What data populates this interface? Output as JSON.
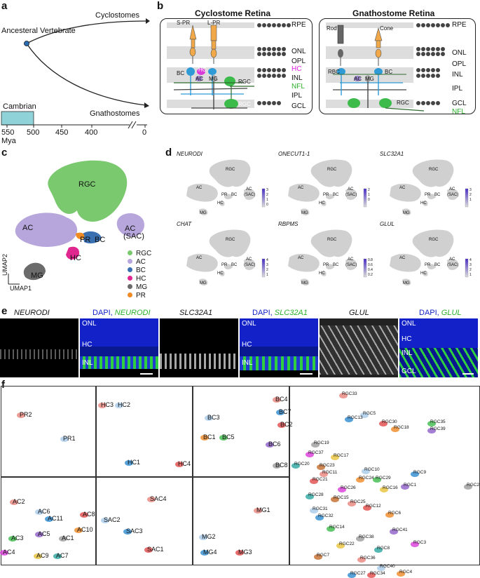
{
  "panel_labels": {
    "a": "a",
    "b": "b",
    "c": "c",
    "d": "d",
    "e": "e",
    "f": "f"
  },
  "panel_a": {
    "root_label": "Ancesteral Vertebrate",
    "branch_top": "Cyclostomes",
    "branch_bottom": "Gnathostomes",
    "period": "Cambrian",
    "ticks": [
      "550",
      "500",
      "450",
      "400",
      "0"
    ],
    "axis_unit": "Mya",
    "period_color": "#8fd3d8"
  },
  "panel_b": {
    "left_title": "Cyclostome Retina",
    "right_title": "Gnathostome Retina",
    "left_layers": [
      "RPE",
      "ONL",
      "OPL",
      "HC",
      "INL",
      "NFL",
      "IPL",
      "GCL"
    ],
    "right_layers": [
      "RPE",
      "ONL",
      "OPL",
      "INL",
      "IPL",
      "GCL",
      "NFL"
    ],
    "left_cells": {
      "spr": "S-PR",
      "lpr": "L-PR",
      "bc": "BC",
      "hc": "HC",
      "ac": "AC",
      "mg": "MG",
      "rgc1": "RGC",
      "rgc2": "RGC"
    },
    "right_cells": {
      "rod": "Rod",
      "cone": "Cone",
      "rbc": "RBC",
      "ac": "AC",
      "mg": "MG",
      "bc": "BC",
      "rgc": "RGC"
    },
    "hc_color": "#e020e0",
    "nfl_color": "#2bb02b"
  },
  "panel_c": {
    "clusters": {
      "rgc": "RGC",
      "ac": "AC",
      "ac_sac_1": "AC",
      "ac_sac_2": "(SAC)",
      "pr": "PR",
      "bc": "BC",
      "hc": "HC",
      "mg": "MG"
    },
    "legend": [
      {
        "label": "RGC",
        "color": "#7bc96f"
      },
      {
        "label": "AC",
        "color": "#b7a6dc"
      },
      {
        "label": "BC",
        "color": "#3a6fb0"
      },
      {
        "label": "HC",
        "color": "#e0268f"
      },
      {
        "label": "MG",
        "color": "#6b6b6b"
      },
      {
        "label": "PR",
        "color": "#f08a24"
      }
    ],
    "umap2": "UMAP2",
    "umap1": "UMAP1"
  },
  "panel_d": {
    "genes": [
      {
        "name": "NEURODI",
        "scale": [
          "3",
          "2",
          "1",
          "0"
        ]
      },
      {
        "name": "ONECUT1-1",
        "scale": [
          "2",
          "1",
          "0"
        ]
      },
      {
        "name": "SLC32A1",
        "scale": [
          "3",
          "2",
          "1"
        ]
      },
      {
        "name": "CHAT",
        "scale": [
          "4",
          "3",
          "2",
          "1"
        ]
      },
      {
        "name": "RBPMS",
        "scale": [
          "0.8",
          "0.6",
          "0.4",
          "0.2"
        ]
      },
      {
        "name": "GLUL",
        "scale": [
          "4",
          "3",
          "2",
          "1"
        ]
      }
    ],
    "mini_labels": {
      "rgc": "RGC",
      "ac": "AC",
      "pr": "PR",
      "bc": "BC",
      "hc": "HC",
      "mg": "MG",
      "acsac1": "AC",
      "acsac2": "(SAC)"
    }
  },
  "panel_e": {
    "titles": [
      "NEURODI",
      "DAPI, ",
      "SLC32A1",
      "DAPI, ",
      "GLUL",
      "DAPI, "
    ],
    "green_titles": [
      "NEURODI",
      "SLC32A1",
      "GLUL"
    ],
    "layer_labels": {
      "onl": "ONL",
      "hc": "HC",
      "inl": "INL",
      "gcl": "GCL"
    }
  },
  "panel_f": {
    "pr": [
      "PR2",
      "PR1"
    ],
    "hc": [
      "HC3",
      "HC2",
      "HC1",
      "HC4"
    ],
    "bc": [
      "BC4",
      "BC3",
      "BC7",
      "BC2",
      "BC1",
      "BC5",
      "BC6",
      "BC8"
    ],
    "ac": [
      "AC2",
      "AC6",
      "AC11",
      "AC8",
      "AC10",
      "AC3",
      "AC5",
      "AC1",
      "AC4",
      "AC9",
      "AC7"
    ],
    "sac": [
      "SAC4",
      "SAC2",
      "SAC3",
      "SAC1"
    ],
    "mg": [
      "MG1",
      "MG2",
      "MG4",
      "MG3"
    ],
    "rgc": [
      "RGC33",
      "RGC5",
      "RGC13",
      "RGC30",
      "RGC18",
      "RGC35",
      "RGC39",
      "RGC19",
      "RGC37",
      "RGC17",
      "RGC20",
      "RGC23",
      "RGC11",
      "RGC10",
      "RGC9",
      "RGC21",
      "RGC24",
      "RGC29",
      "RGC1",
      "RGC2",
      "RGC26",
      "RGC16",
      "RGC28",
      "RGC15",
      "RGC25",
      "RGC31",
      "RGC32",
      "RGC12",
      "RGC6",
      "RGC14",
      "RGC41",
      "RGC38",
      "RGC3",
      "RGC22",
      "RGC8",
      "RGC7",
      "RGC36",
      "RGC40",
      "RGC27",
      "RGC34",
      "RGC4"
    ]
  }
}
